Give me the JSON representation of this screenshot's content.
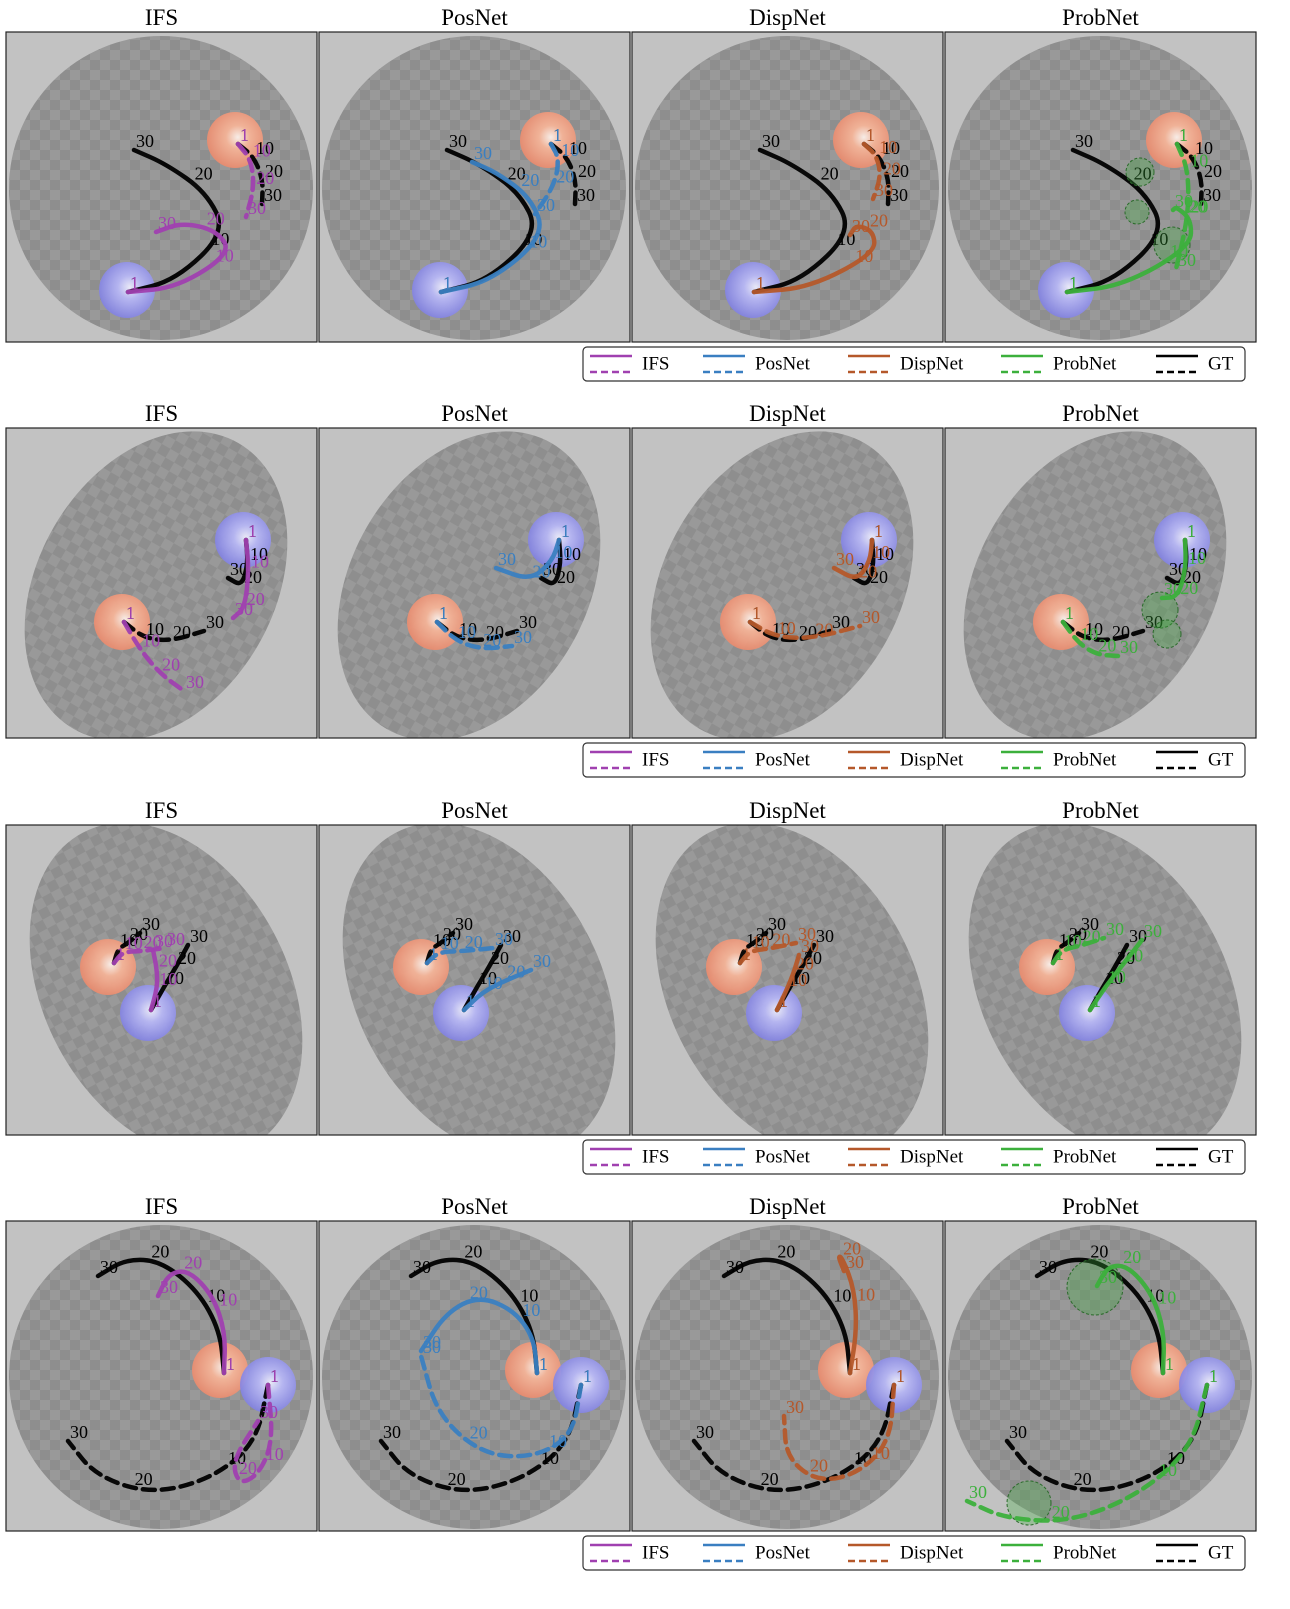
{
  "panel_titles": [
    "IFS",
    "PosNet",
    "DispNet",
    "ProbNet"
  ],
  "legend": [
    {
      "label": "IFS",
      "color": "#a040b0"
    },
    {
      "label": "PosNet",
      "color": "#3a7fc1"
    },
    {
      "label": "DispNet",
      "color": "#b5582a"
    },
    {
      "label": "ProbNet",
      "color": "#3cb03c"
    },
    {
      "label": "GT",
      "color": "#000000"
    }
  ],
  "frame_labels": [
    "1",
    "10",
    "20",
    "30"
  ]
}
